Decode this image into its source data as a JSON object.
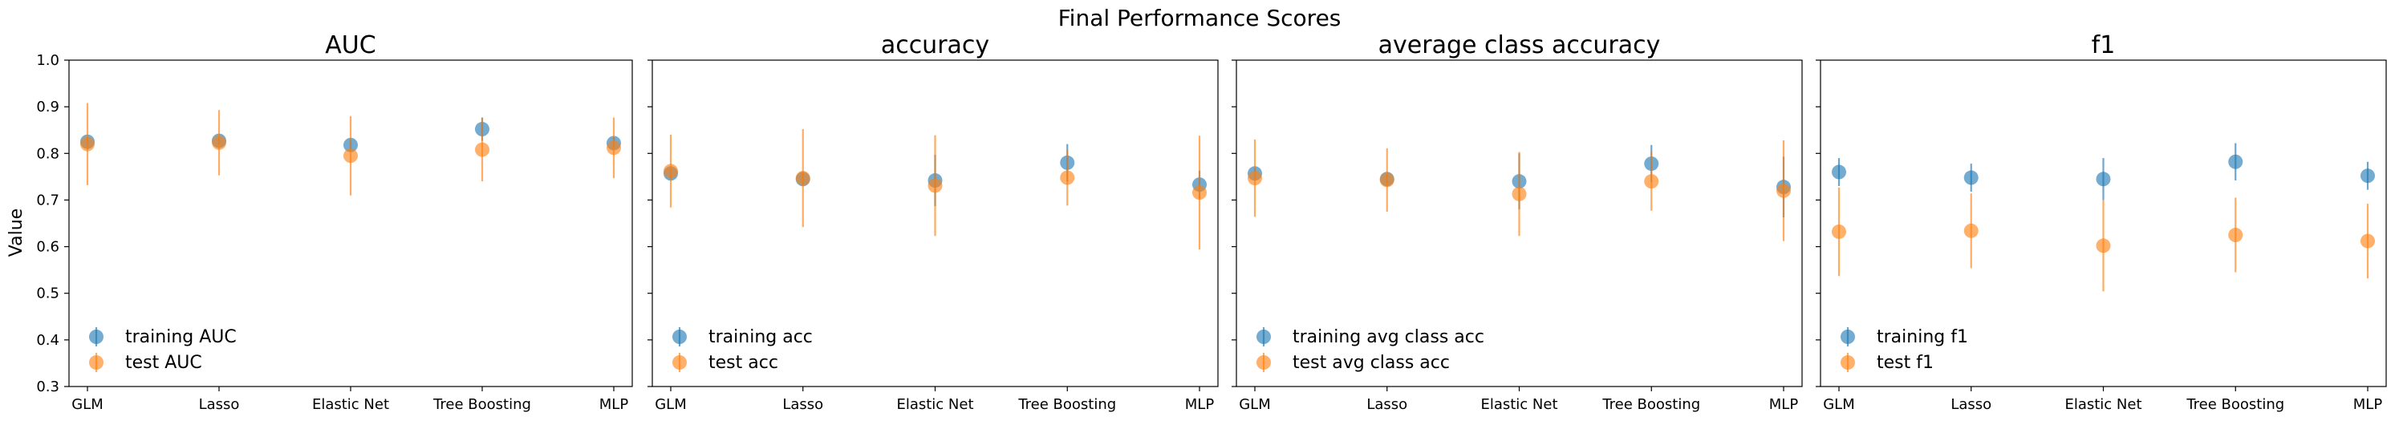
{
  "suptitle": "Final Performance Scores",
  "ylabel": "Value",
  "colors": {
    "training": "#1f77b4",
    "test": "#ff7f0e"
  },
  "chart_data": [
    {
      "type": "scatter",
      "title": "AUC",
      "categories": [
        "GLM",
        "Lasso",
        "Elastic Net",
        "Tree Boosting",
        "MLP"
      ],
      "ylim": [
        0.3,
        1.0
      ],
      "yticks": [
        "0.3",
        "0.4",
        "0.5",
        "0.6",
        "0.7",
        "0.8",
        "0.9",
        "1.0"
      ],
      "legend_position": "lower left",
      "series": [
        {
          "name": "training AUC",
          "values": [
            0.825,
            0.827,
            0.818,
            0.852,
            0.822
          ],
          "err": [
            0.01,
            0.008,
            0.012,
            0.025,
            0.012
          ]
        },
        {
          "name": "test AUC",
          "values": [
            0.82,
            0.823,
            0.795,
            0.808,
            0.812
          ],
          "err": [
            0.088,
            0.07,
            0.085,
            0.068,
            0.065
          ]
        }
      ]
    },
    {
      "type": "scatter",
      "title": "accuracy",
      "categories": [
        "GLM",
        "Lasso",
        "Elastic Net",
        "Tree Boosting",
        "MLP"
      ],
      "ylim": [
        0.3,
        1.0
      ],
      "yticks": [],
      "legend_position": "lower left",
      "series": [
        {
          "name": "training acc",
          "values": [
            0.757,
            0.745,
            0.742,
            0.78,
            0.733
          ],
          "err": [
            0.012,
            0.012,
            0.055,
            0.04,
            0.03
          ]
        },
        {
          "name": "test acc",
          "values": [
            0.762,
            0.747,
            0.731,
            0.748,
            0.716
          ],
          "err": [
            0.078,
            0.105,
            0.108,
            0.06,
            0.122
          ]
        }
      ]
    },
    {
      "type": "scatter",
      "title": "average class accuracy",
      "categories": [
        "GLM",
        "Lasso",
        "Elastic Net",
        "Tree Boosting",
        "MLP"
      ],
      "ylim": [
        0.3,
        1.0
      ],
      "yticks": [],
      "legend_position": "lower left",
      "series": [
        {
          "name": "training avg class acc",
          "values": [
            0.757,
            0.745,
            0.74,
            0.778,
            0.728
          ],
          "err": [
            0.012,
            0.01,
            0.06,
            0.04,
            0.065
          ]
        },
        {
          "name": "test avg class acc",
          "values": [
            0.747,
            0.743,
            0.713,
            0.74,
            0.72
          ],
          "err": [
            0.083,
            0.068,
            0.09,
            0.063,
            0.108
          ]
        }
      ]
    },
    {
      "type": "scatter",
      "title": "f1",
      "categories": [
        "GLM",
        "Lasso",
        "Elastic Net",
        "Tree Boosting",
        "MLP"
      ],
      "ylim": [
        0.3,
        1.0
      ],
      "yticks": [],
      "legend_position": "lower left",
      "series": [
        {
          "name": "training f1",
          "values": [
            0.76,
            0.748,
            0.745,
            0.782,
            0.752
          ],
          "err": [
            0.03,
            0.03,
            0.045,
            0.04,
            0.03
          ]
        },
        {
          "name": "test f1",
          "values": [
            0.632,
            0.634,
            0.602,
            0.625,
            0.612
          ],
          "err": [
            0.095,
            0.08,
            0.098,
            0.08,
            0.08
          ]
        }
      ]
    }
  ]
}
